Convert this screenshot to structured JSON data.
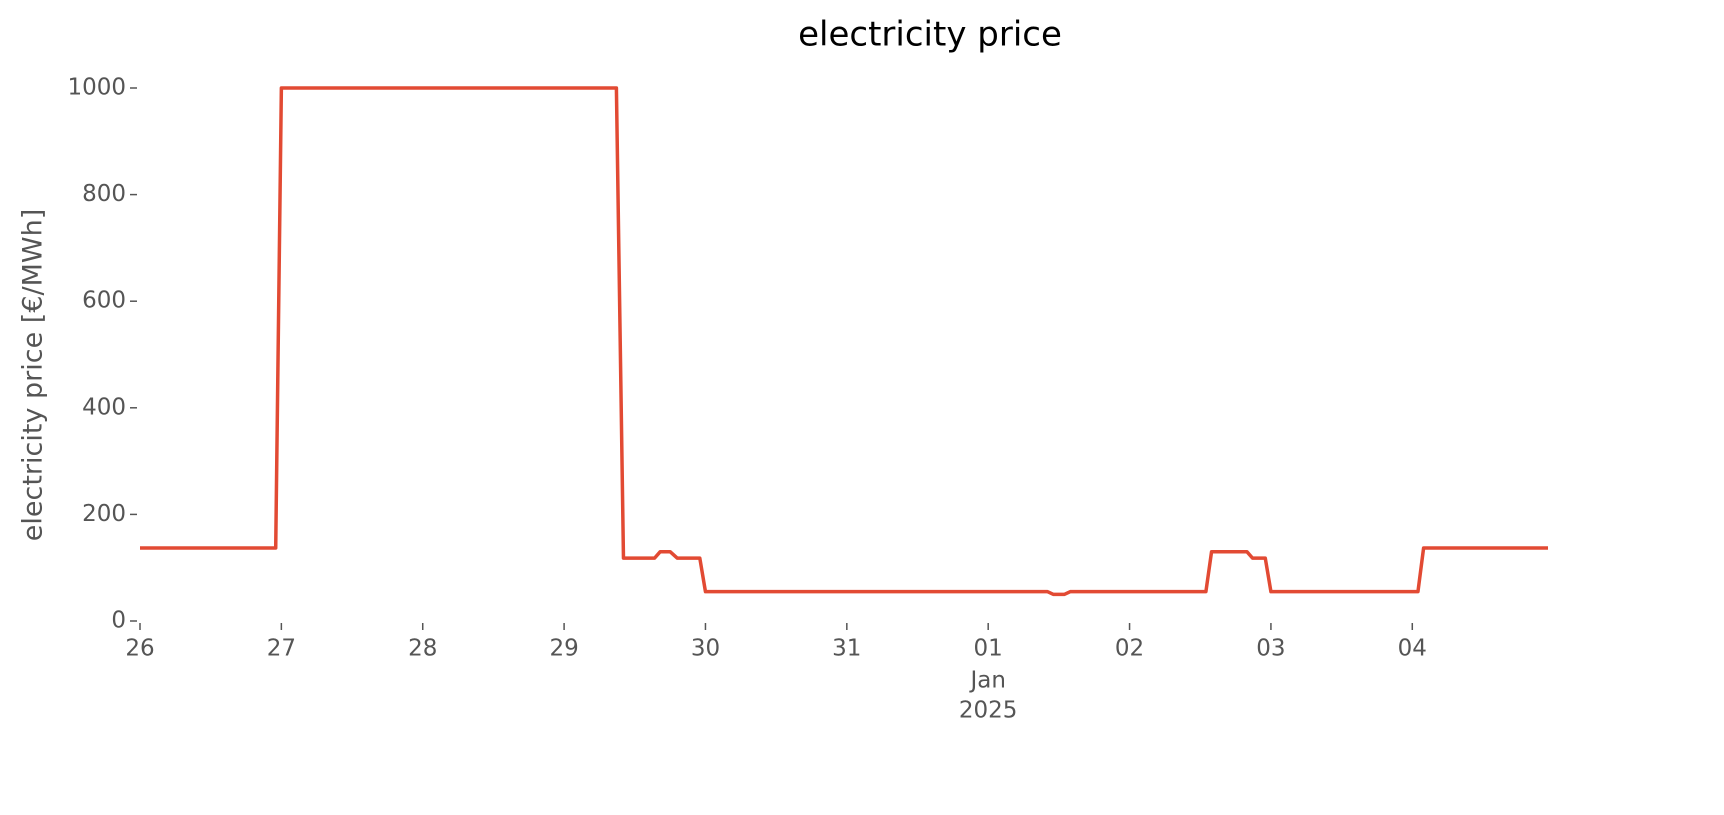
{
  "chart_data": {
    "type": "line",
    "title": "electricity price",
    "y_label": "electricity price [€/MWh]",
    "x_sublabel": [
      "Jan",
      "2025"
    ],
    "x": [
      0,
      0.96,
      1.0,
      3.37,
      3.42,
      3.64,
      3.68,
      3.75,
      3.8,
      3.96,
      4.0,
      6.42,
      6.46,
      6.54,
      6.58,
      7.54,
      7.58,
      7.83,
      7.87,
      7.96,
      8.0,
      9.04,
      9.08,
      9.96
    ],
    "series": [
      {
        "name": "electricity price",
        "color": "#e24a33",
        "values": [
          137,
          137,
          1000,
          1000,
          118,
          118,
          130,
          130,
          118,
          118,
          55,
          55,
          50,
          50,
          55,
          55,
          130,
          130,
          118,
          118,
          55,
          55,
          137,
          137
        ]
      }
    ],
    "xlim": [
      0,
      9.96
    ],
    "xticks": [
      {
        "value": 0,
        "label": "26"
      },
      {
        "value": 1,
        "label": "27"
      },
      {
        "value": 2,
        "label": "28"
      },
      {
        "value": 3,
        "label": "29"
      },
      {
        "value": 4,
        "label": "30"
      },
      {
        "value": 5,
        "label": "31"
      },
      {
        "value": 6,
        "label": "01"
      },
      {
        "value": 7,
        "label": "02"
      },
      {
        "value": 8,
        "label": "03"
      },
      {
        "value": 9,
        "label": "04"
      }
    ],
    "ylim": [
      0,
      1000
    ],
    "yticks": [
      0,
      200,
      400,
      600,
      800,
      1000
    ],
    "grid": false
  }
}
